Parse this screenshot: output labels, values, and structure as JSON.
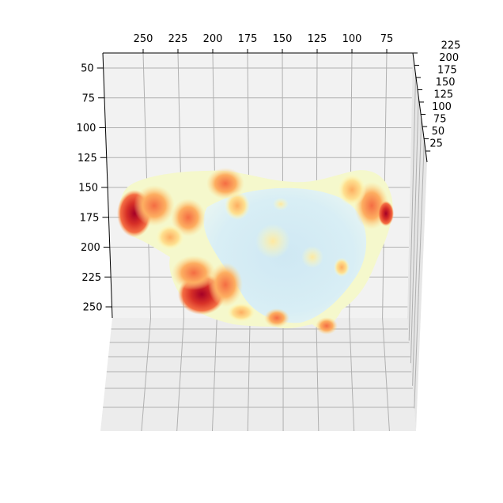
{
  "chart_data": {
    "type": "surface-3d",
    "title": "",
    "xlabel": "",
    "ylabel": "",
    "zlabel": "",
    "x_ticks": [
      "250",
      "225",
      "200",
      "175",
      "150",
      "125",
      "100",
      "75"
    ],
    "y_ticks": [
      "50",
      "75",
      "100",
      "125",
      "150",
      "175",
      "200",
      "225",
      "250"
    ],
    "z_ticks": [
      "225",
      "200",
      "175",
      "150",
      "125",
      "100",
      "75",
      "50",
      "25"
    ],
    "xlim": [
      50,
      265
    ],
    "ylim": [
      40,
      260
    ],
    "zlim": [
      0,
      230
    ],
    "grid": true,
    "colormap": "RdYlBu_r",
    "colormap_stops": [
      "#a50026",
      "#d73027",
      "#f46d43",
      "#fdae61",
      "#fee090",
      "#ffffbf",
      "#e0f3f8",
      "#abd9e9"
    ]
  }
}
